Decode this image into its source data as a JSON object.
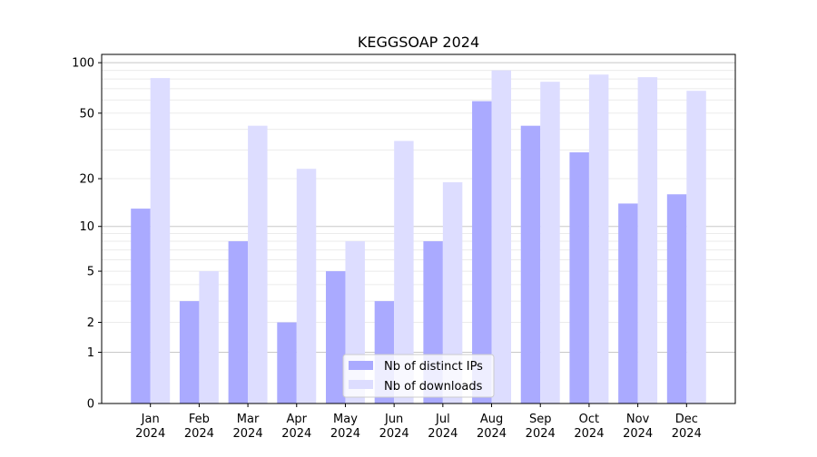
{
  "chart_data": {
    "type": "bar",
    "title": "KEGGSOAP 2024",
    "xlabel": "",
    "ylabel": "",
    "y_scale": "log(1+y) (symlog-like)",
    "ylim": [
      0,
      112
    ],
    "y_ticks": [
      0,
      1,
      2,
      5,
      10,
      20,
      50,
      100
    ],
    "grid": "horizontal major and minor",
    "legend_position": "bottom-center",
    "categories": [
      "Jan\n2024",
      "Feb\n2024",
      "Mar\n2024",
      "Apr\n2024",
      "May\n2024",
      "Jun\n2024",
      "Jul\n2024",
      "Aug\n2024",
      "Sep\n2024",
      "Oct\n2024",
      "Nov\n2024",
      "Dec\n2024"
    ],
    "series": [
      {
        "name": "Nb of distinct IPs",
        "color": "#aaaaff",
        "values": [
          13,
          3,
          8,
          2,
          5,
          3,
          8,
          59,
          42,
          29,
          14,
          16
        ]
      },
      {
        "name": "Nb of downloads",
        "color": "#ddddff",
        "values": [
          81,
          5,
          42,
          23,
          8,
          34,
          19,
          90,
          77,
          85,
          82,
          68
        ]
      }
    ]
  }
}
